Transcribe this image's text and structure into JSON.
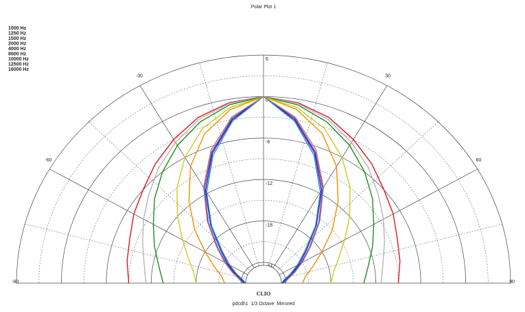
{
  "chart_data": {
    "type": "polar",
    "title": "Polar Plot 1",
    "brand": "CLIO",
    "subtitle": "pdcdh1  1/3 Octave  Mirrored",
    "mirrored": true,
    "x": [
      0,
      10,
      20,
      30,
      40,
      50,
      60,
      70,
      80,
      90
    ],
    "rlim": [
      -27,
      6
    ],
    "rticks": [
      6,
      0,
      -6,
      -12,
      -18,
      -24
    ],
    "thetaticks": [
      -90,
      -60,
      -30,
      30,
      60,
      90
    ],
    "series": [
      {
        "name": "1000 Hz",
        "color": "#e0141c",
        "values": [
          0,
          -0.5,
          -1.5,
          -3,
          -4.5,
          -6,
          -7,
          -8,
          -8.5,
          -9
        ]
      },
      {
        "name": "1250 Hz",
        "color": "#b4b4b4",
        "values": [
          0,
          -0.6,
          -1.8,
          -3.5,
          -5.2,
          -7,
          -8.5,
          -9.8,
          -10.8,
          -11.3
        ]
      },
      {
        "name": "1500 Hz",
        "color": "#1a8c1a",
        "values": [
          0,
          -0.8,
          -2.2,
          -4,
          -6,
          -8,
          -10,
          -11.5,
          -12.8,
          -13.6
        ]
      },
      {
        "name": "2000 Hz",
        "color": "#cccc1a",
        "values": [
          0,
          -1.2,
          -3.2,
          -6,
          -9,
          -12,
          -14.5,
          -16.3,
          -17.5,
          -18
        ]
      },
      {
        "name": "4000 Hz",
        "color": "#f08c00",
        "values": [
          0,
          -1.5,
          -4,
          -7.5,
          -11.5,
          -15,
          -18,
          -20,
          -21.3,
          -21.8
        ]
      },
      {
        "name": "8000 Hz",
        "color": "#2020c8",
        "values": [
          0,
          -3,
          -7,
          -11.5,
          -16,
          -19.5,
          -21.5,
          -23,
          -24,
          -24.5
        ]
      },
      {
        "name": "10000 Hz",
        "color": "#a020a0",
        "values": [
          0,
          -2.8,
          -6.8,
          -11.2,
          -15.5,
          -19,
          -21.2,
          -22.8,
          -23.8,
          -24.3
        ]
      },
      {
        "name": "12500 Hz",
        "color": "#1e90c8",
        "values": [
          0,
          -3.2,
          -7.3,
          -11.8,
          -16.2,
          -19.8,
          -21.8,
          -23.2,
          -24.2,
          -24.6
        ]
      },
      {
        "name": "16000 Hz",
        "color": "#8c8c8c",
        "values": [
          0,
          -2.6,
          -6.5,
          -11,
          -15.3,
          -18.8,
          -21,
          -22.6,
          -23.7,
          -24.2
        ]
      }
    ]
  }
}
